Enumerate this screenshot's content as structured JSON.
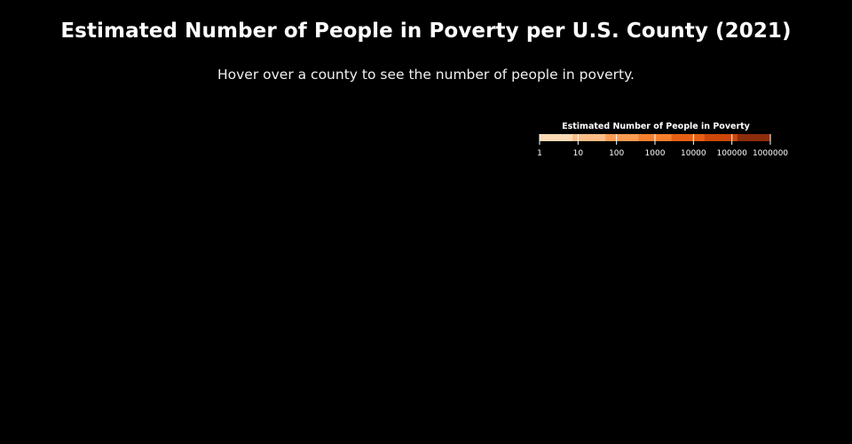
{
  "header": {
    "title": "Estimated Number of People in Poverty per U.S. County (2021)",
    "subtitle": "Hover over a county to see the number of people in poverty."
  },
  "legend": {
    "title": "Estimated Number of People in Poverty",
    "scale": "log",
    "domain": [
      1,
      1000000
    ],
    "tick_labels": [
      "1",
      "10",
      "100",
      "1000",
      "10000",
      "100000",
      "1000000"
    ],
    "colors": [
      "#fdd9b5",
      "#fdbd86",
      "#fd9c52",
      "#f7802e",
      "#e85f13",
      "#cc4708",
      "#8c2e0b"
    ]
  },
  "map": {
    "region": "U.S. counties",
    "counties_rendered": 0
  }
}
